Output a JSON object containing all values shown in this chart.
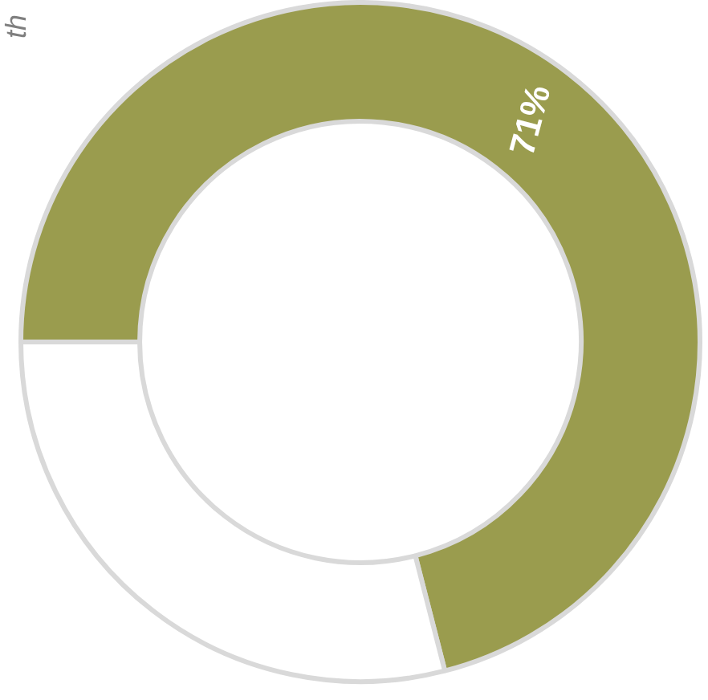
{
  "chart_data": {
    "type": "donut",
    "categories": [
      null,
      null
    ],
    "values": [
      71,
      29
    ],
    "colors": [
      "#9a9c4e",
      "#ffffff"
    ],
    "value_labels": [
      "71%",
      null
    ],
    "annotations": [
      "th"
    ]
  }
}
